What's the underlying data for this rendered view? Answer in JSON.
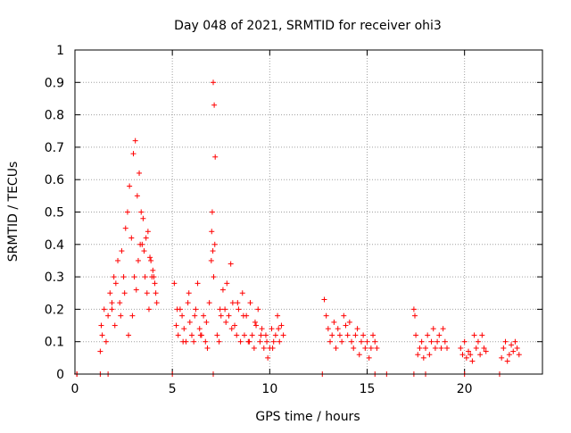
{
  "chart_data": {
    "type": "scatter",
    "title": "Day 048 of 2021, SRMTID for receiver ohi3",
    "xlabel": "GPS time / hours",
    "ylabel": "SRMTID / TECUs",
    "xlim": [
      0,
      24
    ],
    "ylim": [
      0,
      1
    ],
    "xticks": [
      0,
      5,
      10,
      15,
      20
    ],
    "xtick_labels": [
      "0",
      "5",
      "10",
      "15",
      "20"
    ],
    "yticks": [
      0,
      0.1,
      0.2,
      0.3,
      0.4,
      0.5,
      0.6,
      0.7,
      0.8,
      0.9,
      1
    ],
    "ytick_labels": [
      "0",
      "0.1",
      "0.2",
      "0.3",
      "0.4",
      "0.5",
      "0.6",
      "0.7",
      "0.8",
      "0.9",
      "1"
    ],
    "grid": true,
    "marker": "+",
    "color": "#ff0000",
    "series": [
      {
        "name": "SRMTID",
        "x": [
          0.1,
          1.3,
          1.4,
          1.5,
          1.7,
          1.8,
          1.9,
          2.0,
          2.1,
          2.2,
          2.3,
          2.4,
          2.5,
          2.6,
          2.7,
          2.8,
          2.9,
          3.0,
          3.1,
          3.2,
          3.3,
          3.4,
          3.5,
          3.6,
          3.7,
          3.8,
          3.9,
          4.0,
          4.1,
          4.2,
          1.35,
          1.6,
          1.9,
          2.05,
          2.35,
          2.55,
          2.75,
          2.95,
          3.05,
          3.15,
          3.25,
          3.35,
          3.45,
          3.55,
          3.65,
          3.75,
          3.85,
          3.95,
          4.05,
          4.15,
          5.1,
          5.2,
          5.3,
          5.4,
          5.5,
          5.6,
          5.7,
          5.8,
          5.9,
          6.0,
          6.1,
          6.2,
          6.3,
          6.4,
          6.5,
          6.6,
          6.7,
          6.8,
          6.9,
          7.0,
          7.05,
          7.1,
          7.15,
          7.2,
          7.3,
          7.4,
          7.5,
          7.6,
          7.7,
          7.8,
          7.9,
          8.0,
          8.1,
          8.2,
          8.3,
          8.4,
          8.5,
          8.6,
          8.7,
          8.8,
          8.9,
          9.0,
          9.1,
          9.2,
          9.3,
          9.4,
          9.5,
          9.6,
          9.7,
          9.8,
          9.9,
          10.0,
          10.1,
          10.2,
          10.3,
          10.4,
          10.5,
          10.6,
          10.7,
          5.25,
          5.55,
          5.85,
          6.15,
          6.45,
          6.75,
          7.02,
          7.08,
          7.12,
          7.18,
          7.45,
          7.75,
          8.05,
          8.35,
          8.65,
          8.95,
          9.25,
          9.55,
          9.85,
          10.15,
          10.45,
          12.8,
          12.9,
          13.0,
          13.1,
          13.2,
          13.3,
          13.4,
          13.5,
          13.6,
          13.7,
          13.8,
          13.9,
          14.0,
          14.1,
          14.2,
          14.3,
          14.4,
          14.5,
          14.6,
          14.7,
          14.8,
          14.9,
          15.0,
          15.1,
          15.2,
          15.3,
          15.4,
          15.5,
          17.4,
          17.45,
          17.5,
          17.6,
          17.7,
          17.8,
          17.9,
          18.0,
          18.1,
          18.2,
          18.3,
          18.4,
          18.5,
          18.6,
          18.7,
          18.8,
          18.9,
          19.0,
          19.1,
          19.8,
          19.9,
          20.0,
          20.1,
          20.2,
          20.3,
          20.4,
          20.5,
          20.6,
          20.7,
          20.8,
          20.9,
          21.0,
          21.1,
          21.9,
          22.0,
          22.1,
          22.2,
          22.3,
          22.4,
          22.5,
          22.6,
          22.7,
          22.8,
          0.1,
          1.3,
          1.7,
          5.0,
          7.1,
          12.7,
          15.4,
          16.0,
          17.4,
          18.0,
          20.0,
          21.8
        ],
        "y": [
          0,
          0.07,
          0.12,
          0.2,
          0.18,
          0.25,
          0.22,
          0.3,
          0.28,
          0.35,
          0.22,
          0.38,
          0.3,
          0.45,
          0.5,
          0.58,
          0.42,
          0.68,
          0.72,
          0.55,
          0.62,
          0.5,
          0.48,
          0.3,
          0.25,
          0.2,
          0.35,
          0.32,
          0.28,
          0.22,
          0.15,
          0.1,
          0.2,
          0.15,
          0.18,
          0.25,
          0.12,
          0.18,
          0.3,
          0.26,
          0.35,
          0.4,
          0.4,
          0.38,
          0.42,
          0.44,
          0.36,
          0.3,
          0.3,
          0.25,
          0.28,
          0.15,
          0.12,
          0.2,
          0.18,
          0.14,
          0.1,
          0.22,
          0.16,
          0.12,
          0.1,
          0.2,
          0.28,
          0.14,
          0.12,
          0.18,
          0.1,
          0.08,
          0.22,
          0.35,
          0.5,
          0.9,
          0.83,
          0.67,
          0.12,
          0.1,
          0.18,
          0.26,
          0.2,
          0.28,
          0.18,
          0.34,
          0.22,
          0.15,
          0.12,
          0.2,
          0.1,
          0.25,
          0.12,
          0.18,
          0.1,
          0.22,
          0.12,
          0.08,
          0.15,
          0.2,
          0.1,
          0.14,
          0.08,
          0.12,
          0.05,
          0.08,
          0.14,
          0.1,
          0.12,
          0.18,
          0.1,
          0.15,
          0.12,
          0.2,
          0.1,
          0.25,
          0.18,
          0.12,
          0.16,
          0.44,
          0.38,
          0.3,
          0.4,
          0.2,
          0.16,
          0.14,
          0.22,
          0.18,
          0.1,
          0.16,
          0.12,
          0.1,
          0.08,
          0.14,
          0.23,
          0.18,
          0.14,
          0.1,
          0.12,
          0.16,
          0.08,
          0.14,
          0.12,
          0.1,
          0.18,
          0.15,
          0.12,
          0.16,
          0.1,
          0.08,
          0.12,
          0.14,
          0.06,
          0.1,
          0.12,
          0.08,
          0.1,
          0.05,
          0.08,
          0.12,
          0.1,
          0.08,
          0.2,
          0.18,
          0.12,
          0.06,
          0.08,
          0.1,
          0.05,
          0.08,
          0.12,
          0.06,
          0.1,
          0.14,
          0.08,
          0.1,
          0.12,
          0.08,
          0.14,
          0.1,
          0.08,
          0.08,
          0.06,
          0.1,
          0.05,
          0.07,
          0.06,
          0.04,
          0.12,
          0.08,
          0.1,
          0.06,
          0.12,
          0.08,
          0.07,
          0.05,
          0.08,
          0.1,
          0.04,
          0.06,
          0.09,
          0.07,
          0.1,
          0.08,
          0.06,
          0,
          0,
          0,
          0,
          0,
          0,
          0,
          0,
          0,
          0,
          0,
          0
        ]
      }
    ]
  }
}
